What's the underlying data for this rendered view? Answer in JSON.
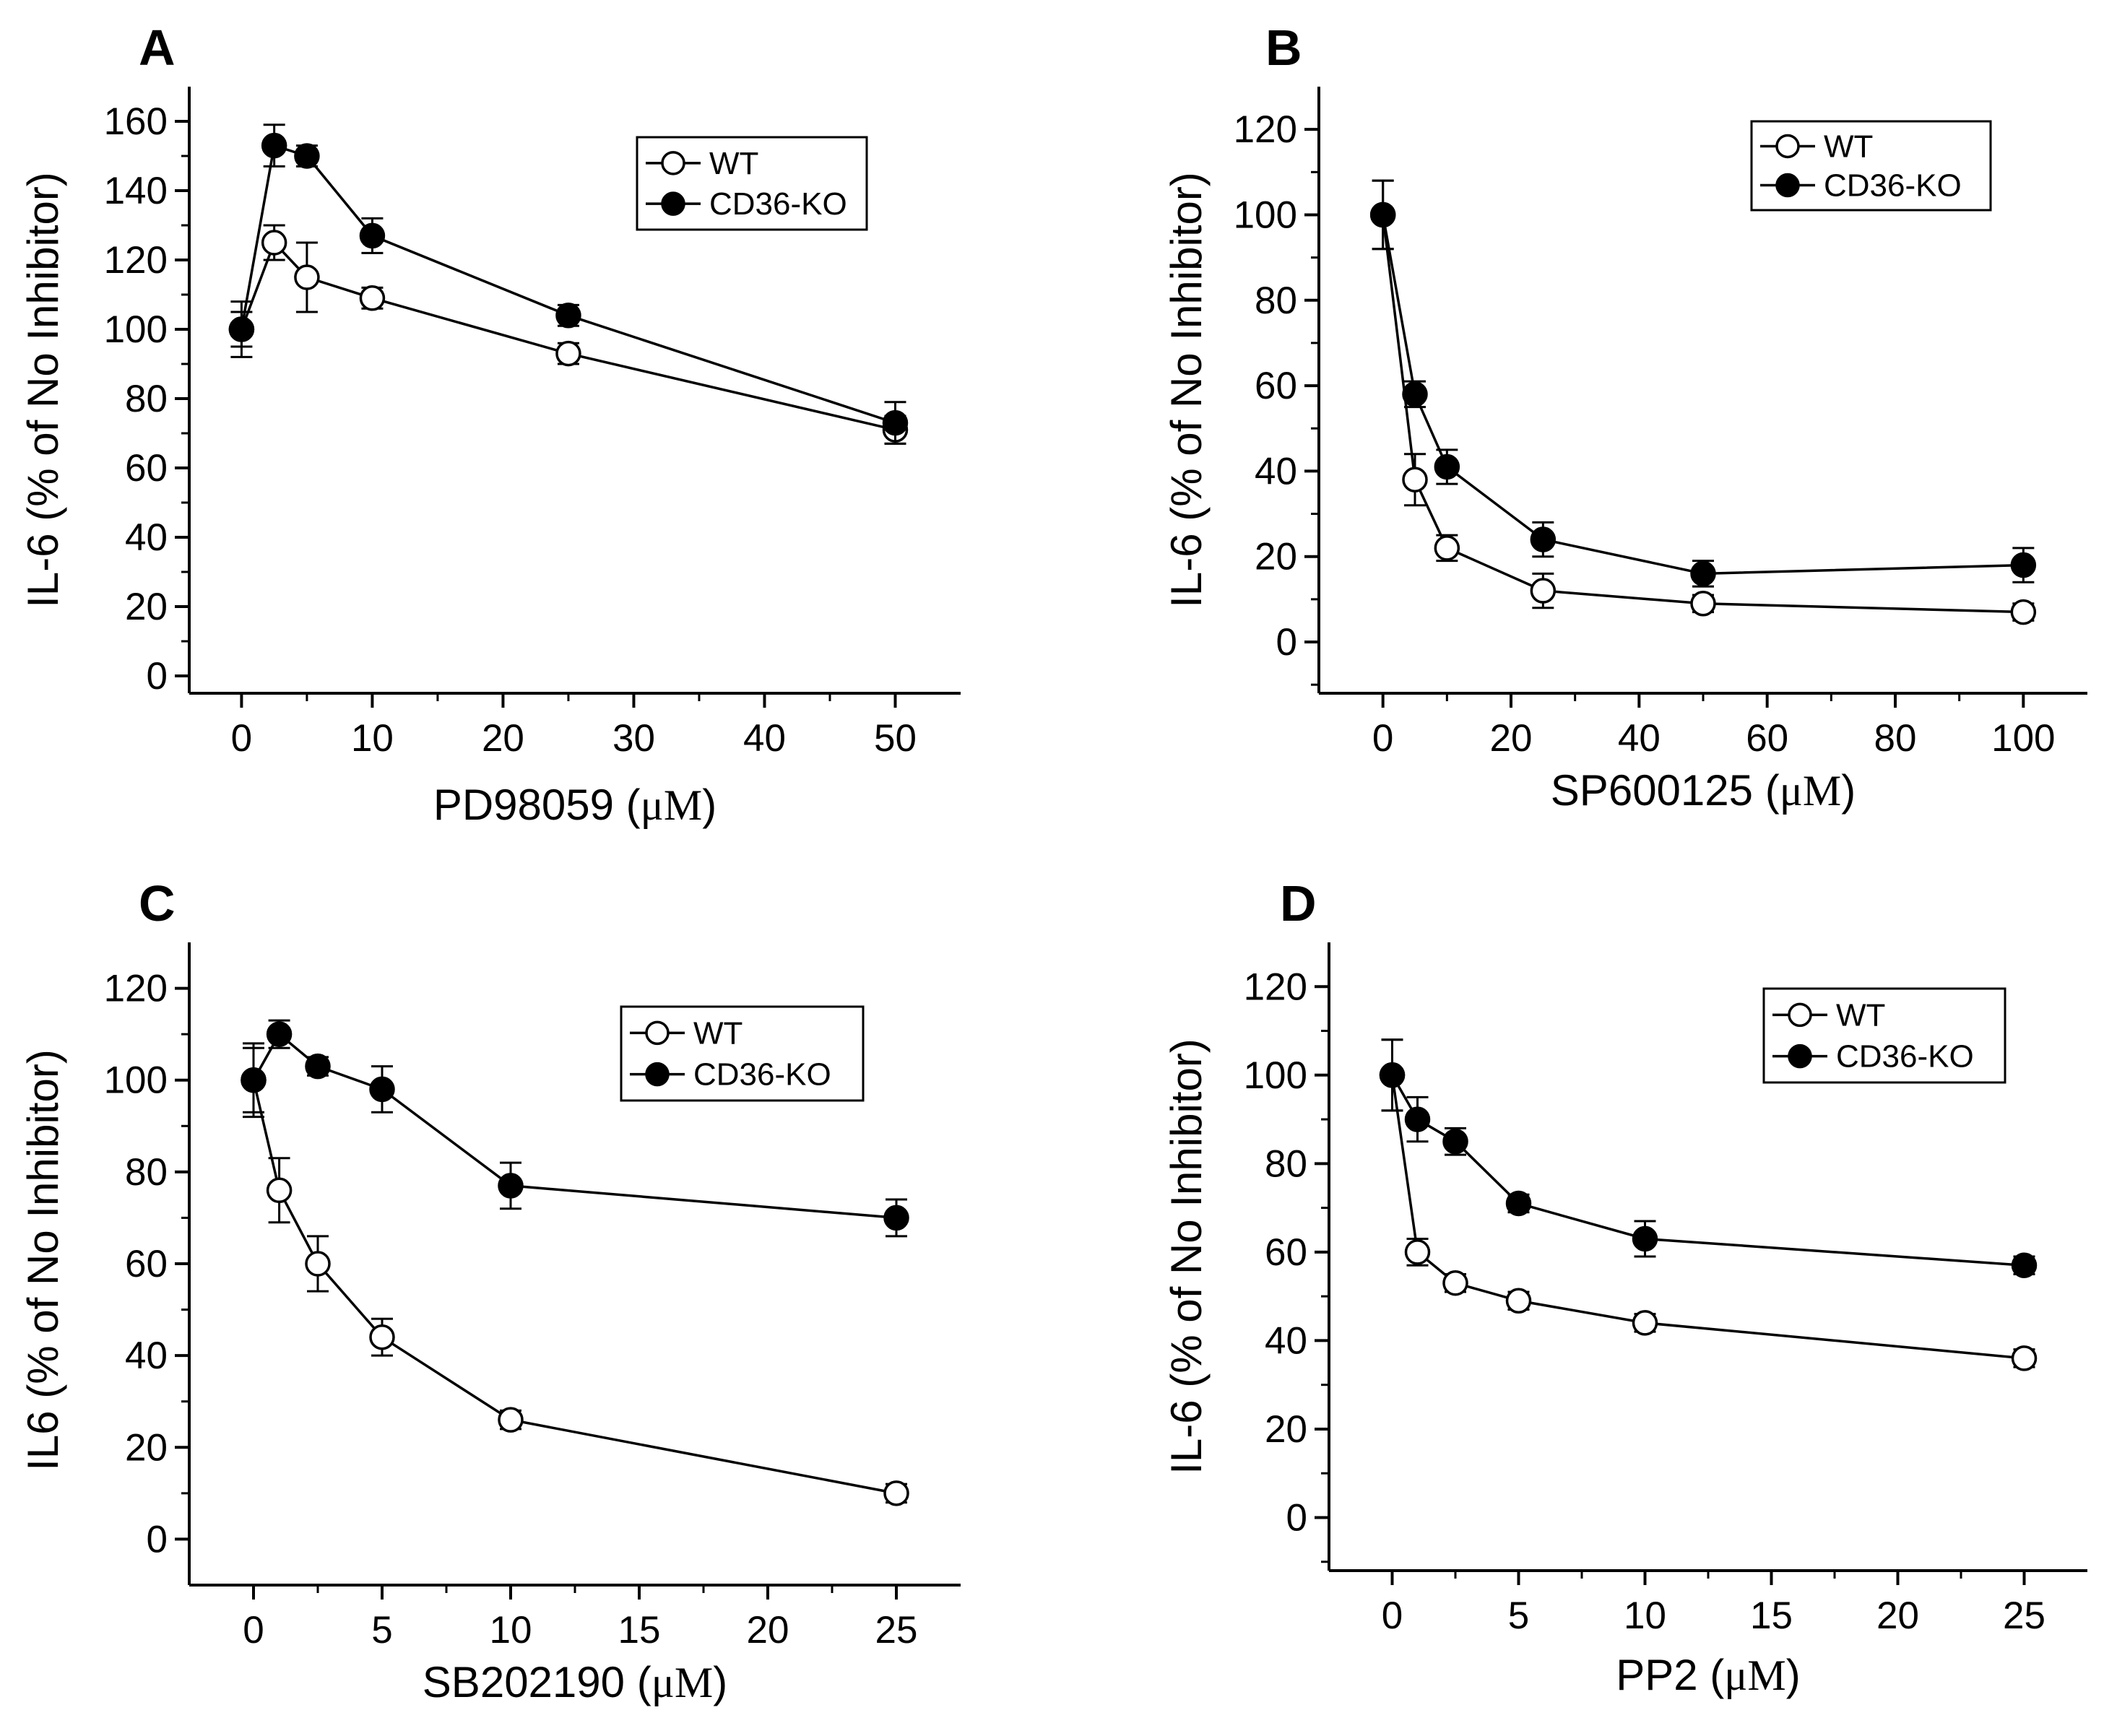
{
  "chart_data": [
    {
      "type": "line",
      "panel_label": "A",
      "xlabel_prefix": "PD98059 (",
      "xlabel_unit": "μM",
      "xlabel_suffix": ")",
      "ylabel": "IL-6 (% of No Inhibitor)",
      "xlim": [
        -4,
        55
      ],
      "ylim": [
        -5,
        170
      ],
      "xticks": [
        0,
        10,
        20,
        30,
        40,
        50
      ],
      "yticks": [
        0,
        20,
        40,
        60,
        80,
        100,
        120,
        140,
        160
      ],
      "legend_position": "top-right",
      "series": [
        {
          "name": "WT",
          "marker": "open-circle",
          "x": [
            0,
            2.5,
            5,
            10,
            25,
            50
          ],
          "y": [
            100,
            125,
            115,
            109,
            93,
            71
          ],
          "err": [
            5,
            5,
            10,
            3,
            3,
            4
          ]
        },
        {
          "name": "CD36-KO",
          "marker": "filled-circle",
          "x": [
            0,
            2.5,
            5,
            10,
            25,
            50
          ],
          "y": [
            100,
            153,
            150,
            127,
            104,
            73
          ],
          "err": [
            8,
            6,
            3,
            5,
            3,
            6
          ]
        }
      ]
    },
    {
      "type": "line",
      "panel_label": "B",
      "xlabel_prefix": "SP600125 (",
      "xlabel_unit": "μM",
      "xlabel_suffix": ")",
      "ylabel": "IL-6 (% of No Inhibitor)",
      "xlim": [
        -10,
        110
      ],
      "ylim": [
        -12,
        130
      ],
      "xticks": [
        0,
        20,
        40,
        60,
        80,
        100
      ],
      "yticks": [
        0,
        20,
        40,
        60,
        80,
        100,
        120
      ],
      "legend_position": "top-right",
      "series": [
        {
          "name": "WT",
          "marker": "open-circle",
          "x": [
            0,
            5,
            10,
            25,
            50,
            100
          ],
          "y": [
            100,
            38,
            22,
            12,
            9,
            7
          ],
          "err": [
            8,
            6,
            3,
            4,
            2,
            2
          ]
        },
        {
          "name": "CD36-KO",
          "marker": "filled-circle",
          "x": [
            0,
            5,
            10,
            25,
            50,
            100
          ],
          "y": [
            100,
            58,
            41,
            24,
            16,
            18
          ],
          "err": [
            8,
            3,
            4,
            4,
            3,
            4
          ]
        }
      ]
    },
    {
      "type": "line",
      "panel_label": "C",
      "xlabel_prefix": "SB202190 (",
      "xlabel_unit": "μM",
      "xlabel_suffix": ")",
      "ylabel": "IL6 (% of No Inhibitor)",
      "xlim": [
        -2.5,
        27.5
      ],
      "ylim": [
        -10,
        130
      ],
      "xticks": [
        0,
        5,
        10,
        15,
        20,
        25
      ],
      "yticks": [
        0,
        20,
        40,
        60,
        80,
        100,
        120
      ],
      "legend_position": "top-right",
      "series": [
        {
          "name": "WT",
          "marker": "open-circle",
          "x": [
            0,
            1,
            2.5,
            5,
            10,
            25
          ],
          "y": [
            100,
            76,
            60,
            44,
            26,
            10
          ],
          "err": [
            8,
            7,
            6,
            4,
            2,
            2
          ]
        },
        {
          "name": "CD36-KO",
          "marker": "filled-circle",
          "x": [
            0,
            1,
            2.5,
            5,
            10,
            25
          ],
          "y": [
            100,
            110,
            103,
            98,
            77,
            70
          ],
          "err": [
            7,
            3,
            2,
            5,
            5,
            4
          ]
        }
      ]
    },
    {
      "type": "line",
      "panel_label": "D",
      "xlabel_prefix": "PP2 (",
      "xlabel_unit": "μM",
      "xlabel_suffix": ")",
      "ylabel": "IL-6 (% of No Inhibitor)",
      "xlim": [
        -2.5,
        27.5
      ],
      "ylim": [
        -12,
        130
      ],
      "xticks": [
        0,
        5,
        10,
        15,
        20,
        25
      ],
      "yticks": [
        0,
        20,
        40,
        60,
        80,
        100,
        120
      ],
      "legend_position": "top-right",
      "series": [
        {
          "name": "WT",
          "marker": "open-circle",
          "x": [
            0,
            1,
            2.5,
            5,
            10,
            25
          ],
          "y": [
            100,
            60,
            53,
            49,
            44,
            36
          ],
          "err": [
            8,
            3,
            2,
            2,
            2,
            2
          ]
        },
        {
          "name": "CD36-KO",
          "marker": "filled-circle",
          "x": [
            0,
            1,
            2.5,
            5,
            10,
            25
          ],
          "y": [
            100,
            90,
            85,
            71,
            63,
            57
          ],
          "err": [
            8,
            5,
            3,
            2,
            4,
            2
          ]
        }
      ]
    }
  ]
}
